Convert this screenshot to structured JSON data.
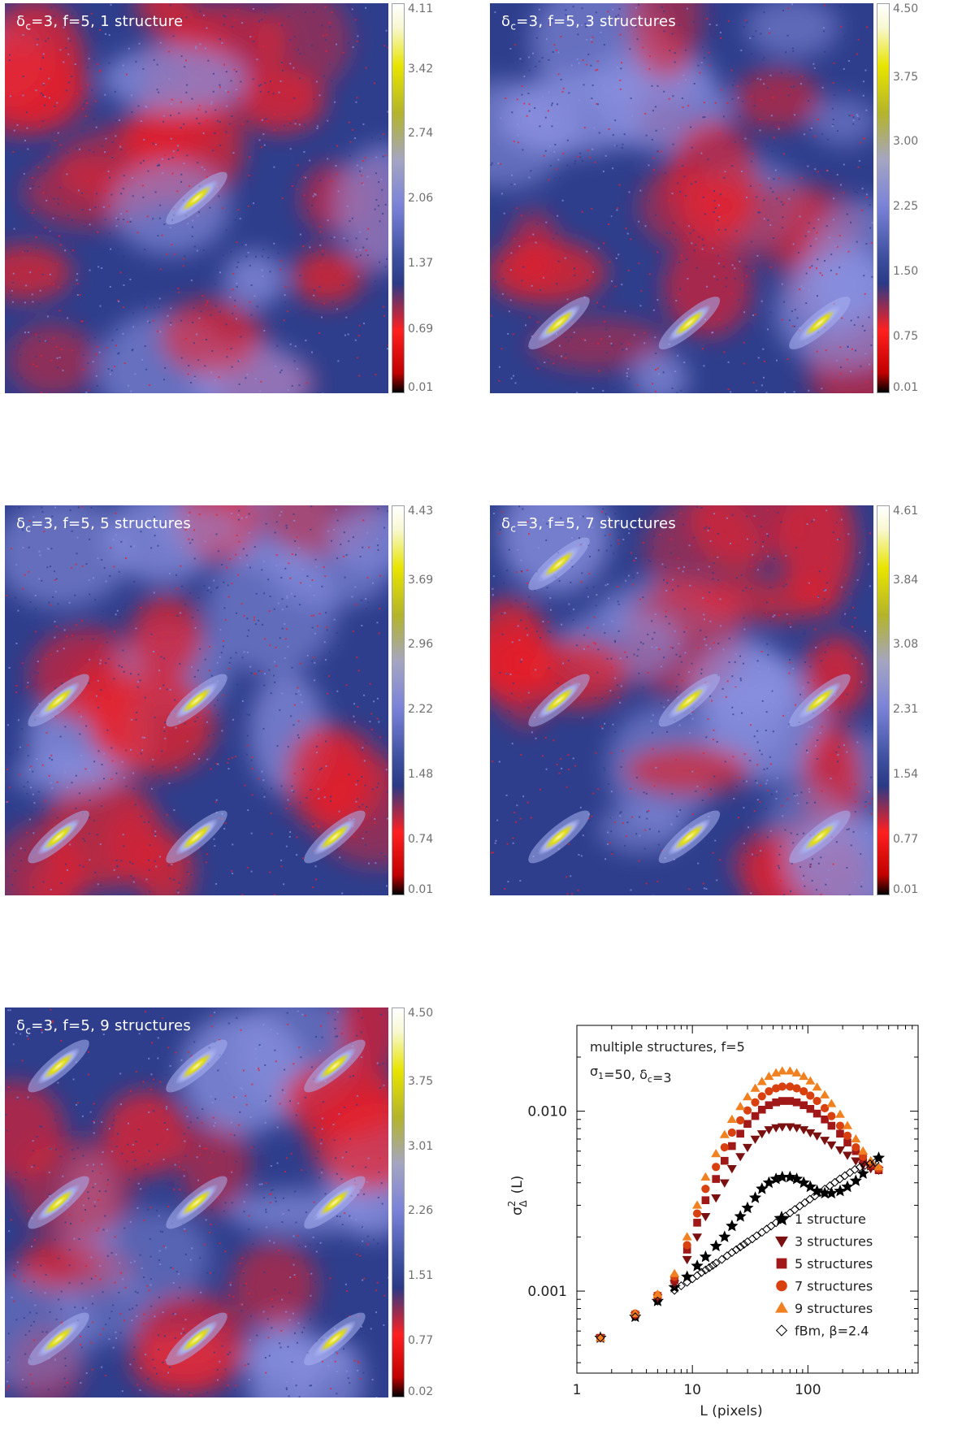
{
  "panels": [
    {
      "title_prefix": "δ",
      "title_sub": "c",
      "title_rest": "=3, f=5, 1 structure",
      "colorbar_ticks": [
        "4.11",
        "3.42",
        "2.74",
        "2.06",
        "1.37",
        "0.69",
        "0.01"
      ],
      "n_structures": 1
    },
    {
      "title_prefix": "δ",
      "title_sub": "c",
      "title_rest": "=3, f=5, 3 structures",
      "colorbar_ticks": [
        "4.50",
        "3.75",
        "3.00",
        "2.25",
        "1.50",
        "0.75",
        "0.01"
      ],
      "n_structures": 3
    },
    {
      "title_prefix": "δ",
      "title_sub": "c",
      "title_rest": "=3, f=5, 5 structures",
      "colorbar_ticks": [
        "4.43",
        "3.69",
        "2.96",
        "2.22",
        "1.48",
        "0.74",
        "0.01"
      ],
      "n_structures": 5
    },
    {
      "title_prefix": "δ",
      "title_sub": "c",
      "title_rest": "=3, f=5, 7 structures",
      "colorbar_ticks": [
        "4.61",
        "3.84",
        "3.08",
        "2.31",
        "1.54",
        "0.77",
        "0.01"
      ],
      "n_structures": 7
    },
    {
      "title_prefix": "δ",
      "title_sub": "c",
      "title_rest": "=3, f=5, 9 structures",
      "colorbar_ticks": [
        "4.50",
        "3.75",
        "3.01",
        "2.26",
        "1.51",
        "0.77",
        "0.02"
      ],
      "n_structures": 9
    }
  ],
  "colors": {
    "map_background": "#2e3e8c",
    "map_red": "#e8202a",
    "map_lilac": "#8a90e0",
    "structure_core": "#e0dc10",
    "structure_halo": "#a8b0f0"
  },
  "chart_data": {
    "type": "scatter",
    "xscale": "log",
    "yscale": "log",
    "xlim": [
      1,
      900
    ],
    "ylim": [
      0.00035,
      0.03
    ],
    "xlabel": "L (pixels)",
    "ylabel_main": "σ",
    "ylabel_sup": "2",
    "ylabel_sub": "Δ",
    "ylabel_rest": "(L)",
    "xticks": [
      {
        "value": 1,
        "label": "1"
      },
      {
        "value": 10,
        "label": "10"
      },
      {
        "value": 100,
        "label": "100"
      }
    ],
    "yticks": [
      {
        "value": 0.001,
        "label": "0.001"
      },
      {
        "value": 0.01,
        "label": "0.010"
      }
    ],
    "annotation_line1": "multiple structures, f=5",
    "annotation_line2_a": "σ",
    "annotation_line2_sub": "1",
    "annotation_line2_b": "=50, δ",
    "annotation_line2_sub2": "c",
    "annotation_line2_c": "=3",
    "series": [
      {
        "name": "1 structure",
        "marker": "star",
        "color": "#000000",
        "x": [
          1.6,
          3.2,
          5,
          7,
          9,
          11,
          13,
          16,
          19,
          22,
          26,
          30,
          35,
          40,
          46,
          53,
          60,
          70,
          80,
          92,
          105,
          120,
          140,
          160,
          190,
          220,
          260,
          300,
          350,
          410
        ],
        "y": [
          0.00055,
          0.00072,
          0.00088,
          0.00105,
          0.0012,
          0.00138,
          0.00155,
          0.00178,
          0.002,
          0.0023,
          0.0026,
          0.0029,
          0.0033,
          0.0037,
          0.004,
          0.0042,
          0.0043,
          0.0043,
          0.0042,
          0.004,
          0.0038,
          0.0036,
          0.0035,
          0.0035,
          0.0036,
          0.0038,
          0.0041,
          0.0045,
          0.005,
          0.0055
        ]
      },
      {
        "name": "3 structures",
        "marker": "triangle-down",
        "color": "#7a1010",
        "x": [
          1.6,
          3.2,
          5,
          7,
          9,
          11,
          13,
          16,
          19,
          22,
          26,
          30,
          35,
          40,
          46,
          53,
          60,
          70,
          80,
          92,
          105,
          120,
          140,
          160,
          190,
          220,
          260,
          300,
          350,
          410
        ],
        "y": [
          0.00055,
          0.00073,
          0.00092,
          0.0011,
          0.0015,
          0.002,
          0.0026,
          0.0033,
          0.004,
          0.0048,
          0.0056,
          0.0063,
          0.007,
          0.0075,
          0.0079,
          0.0081,
          0.0082,
          0.0082,
          0.0081,
          0.0079,
          0.0076,
          0.0073,
          0.0069,
          0.0065,
          0.0061,
          0.0057,
          0.0053,
          0.005,
          0.0048,
          0.0047
        ]
      },
      {
        "name": "5 structures",
        "marker": "square",
        "color": "#a01818",
        "x": [
          1.6,
          3.2,
          5,
          7,
          9,
          11,
          13,
          16,
          19,
          22,
          26,
          30,
          35,
          40,
          46,
          53,
          60,
          70,
          80,
          92,
          105,
          120,
          140,
          160,
          190,
          220,
          260,
          300,
          350,
          410
        ],
        "y": [
          0.00055,
          0.00074,
          0.00094,
          0.00115,
          0.0017,
          0.0024,
          0.0032,
          0.0042,
          0.0053,
          0.0064,
          0.0075,
          0.0085,
          0.0094,
          0.0102,
          0.0108,
          0.0112,
          0.0114,
          0.0114,
          0.0112,
          0.0108,
          0.0103,
          0.0097,
          0.009,
          0.0083,
          0.0075,
          0.0067,
          0.006,
          0.0054,
          0.005,
          0.0047
        ]
      },
      {
        "name": "7 structures",
        "marker": "circle",
        "color": "#d84010",
        "x": [
          1.6,
          3.2,
          5,
          7,
          9,
          11,
          13,
          16,
          19,
          22,
          26,
          30,
          35,
          40,
          46,
          53,
          60,
          70,
          80,
          92,
          105,
          120,
          140,
          160,
          190,
          220,
          260,
          300,
          350,
          410
        ],
        "y": [
          0.00055,
          0.00075,
          0.00095,
          0.0012,
          0.0018,
          0.0027,
          0.0037,
          0.0049,
          0.0063,
          0.0076,
          0.0089,
          0.0101,
          0.0112,
          0.0121,
          0.0129,
          0.0134,
          0.0137,
          0.0137,
          0.0134,
          0.0129,
          0.0122,
          0.0114,
          0.0104,
          0.0094,
          0.0083,
          0.0073,
          0.0063,
          0.0056,
          0.0051,
          0.0048
        ]
      },
      {
        "name": "9 structures",
        "marker": "triangle-up",
        "color": "#f08020",
        "x": [
          1.6,
          3.2,
          5,
          7,
          9,
          11,
          13,
          16,
          19,
          22,
          26,
          30,
          35,
          40,
          46,
          53,
          60,
          70,
          80,
          92,
          105,
          120,
          140,
          160,
          190,
          220,
          260,
          300,
          350,
          410
        ],
        "y": [
          0.00055,
          0.00075,
          0.00096,
          0.00125,
          0.002,
          0.003,
          0.0043,
          0.0058,
          0.0074,
          0.009,
          0.0106,
          0.012,
          0.0134,
          0.0146,
          0.0156,
          0.0163,
          0.0167,
          0.0167,
          0.0163,
          0.0156,
          0.0147,
          0.0136,
          0.0123,
          0.011,
          0.0096,
          0.0083,
          0.007,
          0.006,
          0.0053,
          0.0049
        ]
      },
      {
        "name": "fBm, β=2.4",
        "marker": "diamond-open",
        "color": "#000000",
        "x": [
          1.6,
          3.2,
          5,
          7,
          8,
          9,
          10,
          11,
          12,
          13,
          14,
          15,
          16,
          18,
          20,
          22,
          24,
          26,
          28,
          30,
          33,
          36,
          40,
          44,
          48,
          53,
          58,
          64,
          70,
          77,
          85,
          94,
          104,
          115,
          127,
          140,
          155,
          171,
          189,
          209,
          231,
          255,
          282,
          312,
          345,
          381
        ],
        "y": [
          0.00055,
          0.00072,
          0.00088,
          0.00101,
          0.00107,
          0.00112,
          0.00117,
          0.00122,
          0.00127,
          0.00131,
          0.00135,
          0.00139,
          0.00143,
          0.0015,
          0.00157,
          0.00164,
          0.0017,
          0.00176,
          0.00182,
          0.00188,
          0.00195,
          0.00203,
          0.00212,
          0.00221,
          0.0023,
          0.0024,
          0.0025,
          0.00261,
          0.00272,
          0.00284,
          0.00297,
          0.0031,
          0.00324,
          0.00338,
          0.00353,
          0.00369,
          0.00385,
          0.00402,
          0.0042,
          0.00438,
          0.00456,
          0.00474,
          0.00488,
          0.005,
          0.0051,
          0.00518
        ]
      }
    ]
  }
}
